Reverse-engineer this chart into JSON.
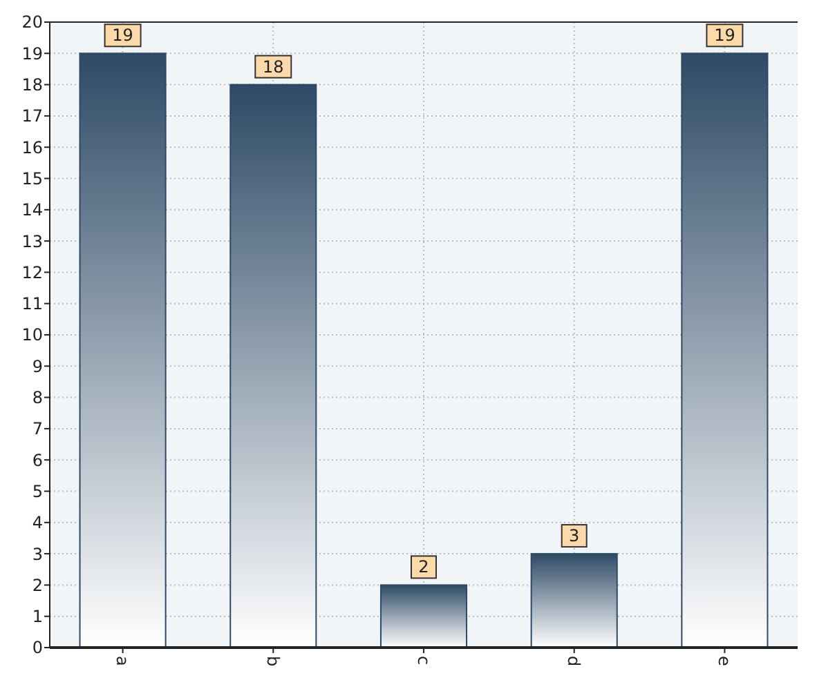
{
  "chart_data": {
    "type": "bar",
    "categories": [
      "a",
      "b",
      "c",
      "d",
      "e"
    ],
    "values": [
      19,
      18,
      2,
      3,
      19
    ],
    "color": "#2e4a66",
    "ylim": [
      0,
      20
    ],
    "yticks": [
      0,
      1,
      2,
      3,
      4,
      5,
      6,
      7,
      8,
      9,
      10,
      11,
      12,
      13,
      14,
      15,
      16,
      17,
      18,
      19,
      20
    ],
    "grid": true,
    "data_labels": true
  }
}
